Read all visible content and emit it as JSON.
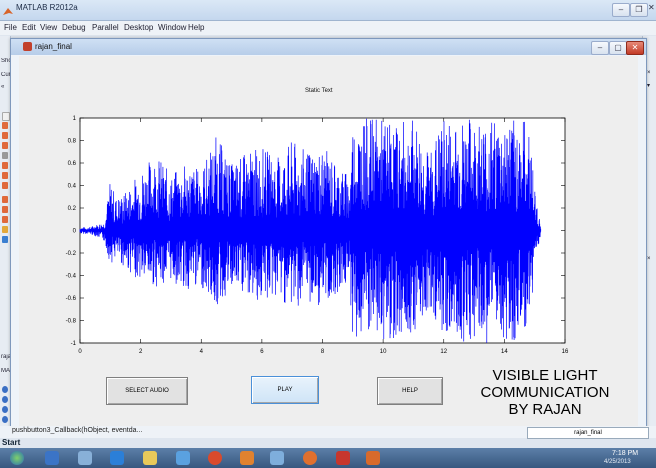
{
  "matlab": {
    "title": "MATLAB R2012a",
    "menu": [
      "File",
      "Edit",
      "View",
      "Debug",
      "Parallel",
      "Desktop",
      "Window",
      "Help"
    ],
    "left_labels": [
      "Shor",
      "Curren",
      "«",
      "rajan_",
      "MATL"
    ],
    "callback_text": "pushbutton3_Callback(hObject, eventda...",
    "start_label": "Start",
    "editor_tab": "rajan_final"
  },
  "figure": {
    "title": "rajan_final",
    "static_text": "Static Text",
    "buttons": {
      "select_audio": "SELECT AUDIO",
      "play": "PLAY",
      "help": "HELP"
    },
    "caption_lines": [
      "VISIBLE LIGHT",
      "COMMUNICATION",
      "BY RAJAN"
    ]
  },
  "chart_data": {
    "type": "line",
    "title": "",
    "xlabel": "",
    "ylabel": "",
    "xlim": [
      0,
      16
    ],
    "ylim": [
      -1,
      1
    ],
    "xticks": [
      0,
      2,
      4,
      6,
      8,
      10,
      12,
      14,
      16
    ],
    "yticks": [
      -1,
      -0.8,
      -0.6,
      -0.4,
      -0.2,
      0,
      0.2,
      0.4,
      0.6,
      0.8,
      1
    ],
    "line_color": "#0000ff",
    "envelope": {
      "x": [
        0,
        0.3,
        0.5,
        0.8,
        1.0,
        1.2,
        1.5,
        2,
        2.5,
        3,
        3.5,
        4,
        4.5,
        5,
        5.5,
        6,
        6.5,
        7,
        7.5,
        8,
        8.5,
        8.9,
        9.0,
        9.5,
        10,
        10.5,
        11,
        11.5,
        12,
        12.5,
        13,
        13.5,
        14,
        14.5,
        14.8,
        15,
        15.2
      ],
      "upper": [
        0.03,
        0.03,
        0.05,
        0.08,
        0.45,
        0.3,
        0.35,
        0.55,
        0.7,
        0.5,
        0.6,
        0.55,
        0.85,
        0.6,
        0.7,
        0.75,
        0.65,
        0.8,
        0.7,
        0.75,
        0.6,
        0.5,
        1.0,
        1.0,
        1.0,
        0.95,
        1.0,
        0.7,
        1.0,
        1.0,
        1.0,
        1.0,
        1.0,
        1.0,
        1.0,
        0.4,
        0.03
      ],
      "lower": [
        -0.03,
        -0.03,
        -0.05,
        -0.1,
        -0.3,
        -0.25,
        -0.35,
        -0.45,
        -0.5,
        -0.45,
        -0.55,
        -0.5,
        -0.7,
        -0.55,
        -0.6,
        -0.65,
        -0.6,
        -0.7,
        -0.65,
        -0.7,
        -0.55,
        -0.5,
        -1.0,
        -1.0,
        -1.0,
        -0.95,
        -0.9,
        -0.7,
        -0.95,
        -1.0,
        -1.0,
        -1.0,
        -1.0,
        -1.0,
        -0.95,
        -0.35,
        -0.03
      ]
    }
  },
  "colors": {
    "taskbar": "#3f6088",
    "plot_line": "#0000ff"
  },
  "clock": {
    "time": "7:18 PM",
    "date": "4/25/2013"
  }
}
